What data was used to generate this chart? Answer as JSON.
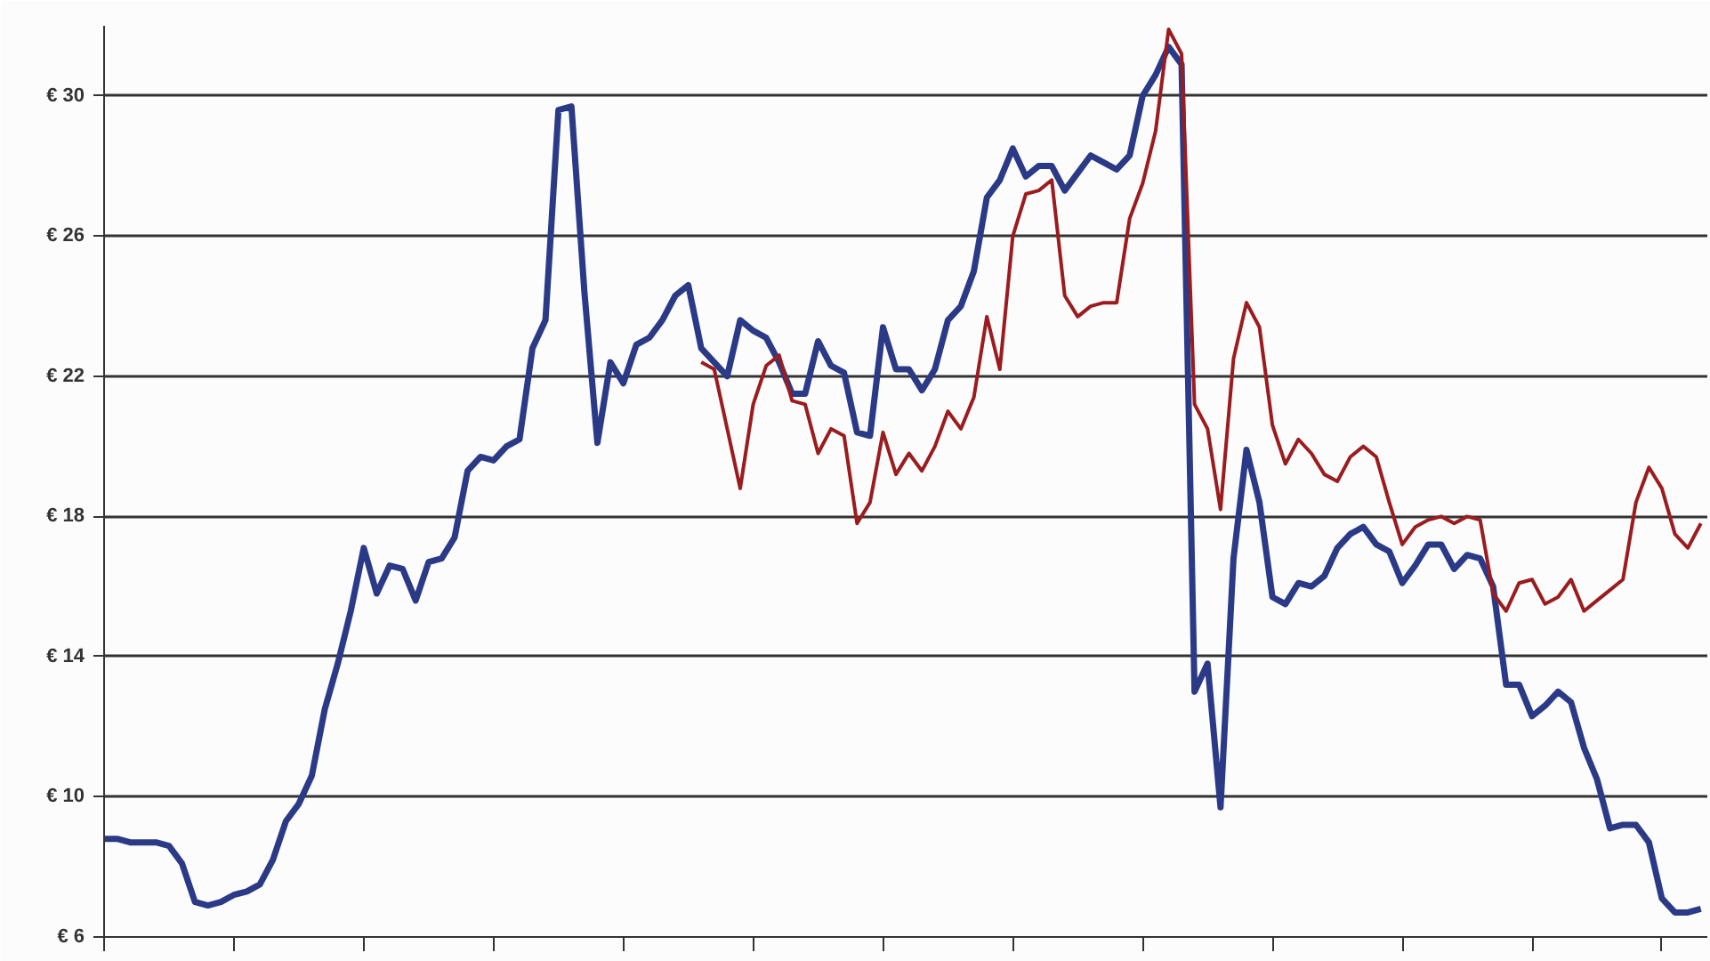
{
  "chart_data": {
    "type": "line",
    "categories": [
      null,
      null,
      null,
      null,
      null,
      null,
      null,
      null,
      null,
      null,
      null,
      null,
      null,
      null,
      null,
      null,
      null,
      null,
      null,
      null,
      null,
      null,
      null,
      null,
      null,
      null,
      null,
      null,
      null,
      null,
      null,
      null,
      null,
      null,
      null,
      null,
      null,
      null,
      null,
      null,
      null,
      null,
      null,
      null,
      null,
      null,
      null,
      null,
      null,
      null,
      null,
      null,
      null,
      null,
      null,
      null,
      null,
      null,
      null,
      null,
      null,
      null,
      null,
      null,
      null,
      null,
      null,
      null,
      null,
      null,
      null,
      null,
      null,
      null,
      null,
      null,
      null,
      null,
      null,
      null,
      null,
      null,
      null,
      null,
      null,
      null,
      null,
      null,
      null,
      null,
      null,
      null,
      null,
      null,
      null,
      null,
      null,
      null,
      null,
      null,
      null,
      null,
      null,
      null,
      null,
      null,
      null,
      null,
      null,
      null,
      null,
      null,
      null,
      null,
      null,
      null,
      null,
      null,
      null,
      null,
      null,
      null,
      null,
      null
    ],
    "ylim": [
      6,
      32
    ],
    "yticks": [
      {
        "value": 6,
        "label": "€ 6"
      },
      {
        "value": 10,
        "label": "€ 10"
      },
      {
        "value": 14,
        "label": "€ 14"
      },
      {
        "value": 18,
        "label": "€ 18"
      },
      {
        "value": 22,
        "label": "€ 22"
      },
      {
        "value": 26,
        "label": "€ 26"
      },
      {
        "value": 30,
        "label": "€ 30"
      }
    ],
    "grid": "y",
    "tick_labels": "y",
    "series": [
      {
        "color": "#2b3a86",
        "values": [
          8.8,
          8.8,
          8.7,
          8.7,
          8.7,
          8.6,
          8.1,
          7.0,
          6.9,
          7.0,
          7.2,
          7.3,
          7.5,
          8.2,
          9.3,
          9.8,
          10.6,
          12.5,
          13.8,
          15.3,
          17.1,
          15.8,
          16.6,
          16.5,
          15.6,
          16.7,
          16.8,
          17.4,
          19.3,
          19.7,
          19.6,
          20.0,
          20.2,
          22.8,
          23.6,
          29.6,
          29.7,
          24.4,
          20.1,
          22.4,
          21.8,
          22.9,
          23.1,
          23.6,
          24.3,
          24.6,
          22.8,
          22.4,
          22.0,
          23.6,
          23.3,
          23.1,
          22.4,
          21.5,
          21.5,
          23.0,
          22.3,
          22.1,
          20.4,
          20.3,
          23.4,
          22.2,
          22.2,
          21.6,
          22.2,
          23.6,
          24.0,
          25.0,
          27.1,
          27.6,
          28.5,
          27.7,
          28.0,
          28.0,
          27.3,
          27.8,
          28.3,
          28.1,
          27.9,
          28.3,
          30.0,
          30.6,
          31.4,
          30.9,
          13.0,
          13.8,
          9.7,
          16.8,
          19.9,
          18.4,
          15.7,
          15.5,
          16.1,
          16.0,
          16.3,
          17.1,
          17.5,
          17.7,
          17.2,
          17.0,
          16.1,
          16.6,
          17.2,
          17.2,
          16.5,
          16.9,
          16.8,
          16.0,
          13.2,
          13.2,
          12.3,
          12.6,
          13.0,
          12.7,
          11.4,
          10.5,
          9.1,
          9.2,
          9.2,
          8.7,
          7.1,
          6.7,
          6.7,
          6.8
        ]
      },
      {
        "color": "#9b1c1f",
        "values": [
          null,
          null,
          null,
          null,
          null,
          null,
          null,
          null,
          null,
          null,
          null,
          null,
          null,
          null,
          null,
          null,
          null,
          null,
          null,
          null,
          null,
          null,
          null,
          null,
          null,
          null,
          null,
          null,
          null,
          null,
          null,
          null,
          null,
          null,
          null,
          null,
          null,
          null,
          null,
          null,
          null,
          null,
          null,
          null,
          null,
          null,
          22.4,
          22.2,
          20.5,
          18.8,
          21.2,
          22.3,
          22.6,
          21.3,
          21.2,
          19.8,
          20.5,
          20.3,
          17.8,
          18.4,
          20.4,
          19.2,
          19.8,
          19.3,
          20.0,
          21.0,
          20.5,
          21.4,
          23.7,
          22.2,
          26.0,
          27.2,
          27.3,
          27.6,
          24.3,
          23.7,
          24.0,
          24.1,
          24.1,
          26.5,
          27.5,
          29.0,
          31.9,
          31.2,
          21.2,
          20.5,
          18.2,
          22.5,
          24.1,
          23.4,
          20.6,
          19.5,
          20.2,
          19.8,
          19.2,
          19.0,
          19.7,
          20.0,
          19.7,
          18.4,
          17.2,
          17.7,
          17.9,
          18.0,
          17.8,
          18.0,
          17.9,
          15.8,
          15.3,
          16.1,
          16.2,
          15.5,
          15.7,
          16.2,
          15.3,
          15.6,
          15.9,
          16.2,
          18.4,
          19.4,
          18.8,
          17.5,
          17.1,
          17.8
        ]
      }
    ]
  }
}
